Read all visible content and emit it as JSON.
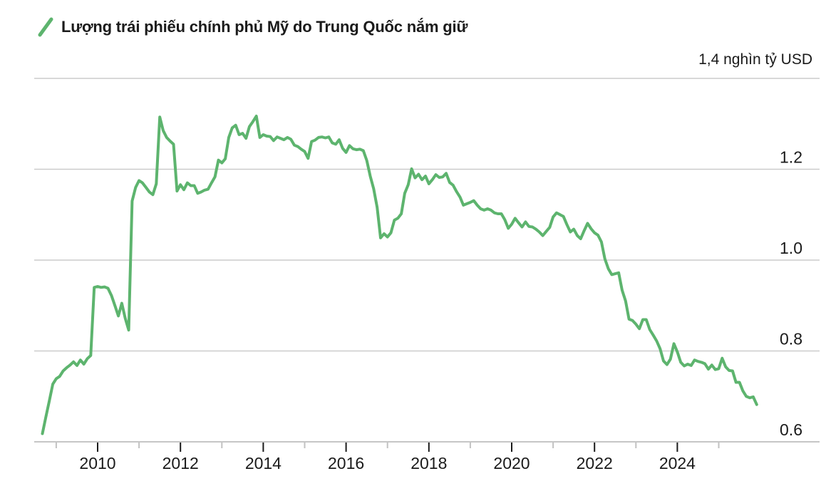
{
  "header": {
    "legend_label": "Lượng trái phiếu chính phủ Mỹ do Trung Quốc nắm giữ"
  },
  "colors": {
    "line": "#5db46e",
    "grid": "#cccccc",
    "axis": "#c6c6c6",
    "tick_major": "#1a1a1a",
    "tick_minor": "#c2c2c2",
    "text": "#1a1a1a"
  },
  "chart_data": {
    "type": "line",
    "title": "Lượng trái phiếu chính phủ Mỹ do Trung Quốc nắm giữ",
    "unit_top_label": "1,4 nghìn tỷ USD",
    "ylabel": "nghìn tỷ USD",
    "xlabel": "",
    "ylim": [
      0.6,
      1.4
    ],
    "grid": true,
    "legend_position": "top-left",
    "y_gridlines": [
      1.4,
      1.2,
      1.0,
      0.8,
      0.6
    ],
    "y_tick_labels": [
      {
        "value": 1.2,
        "label": "1.2"
      },
      {
        "value": 1.0,
        "label": "1.0"
      },
      {
        "value": 0.8,
        "label": "0.8"
      },
      {
        "value": 0.6,
        "label": "0.6"
      }
    ],
    "x_ticks_major": [
      {
        "year": 2010,
        "label": "2010"
      },
      {
        "year": 2012,
        "label": "2012"
      },
      {
        "year": 2014,
        "label": "2014"
      },
      {
        "year": 2016,
        "label": "2016"
      },
      {
        "year": 2018,
        "label": "2018"
      },
      {
        "year": 2020,
        "label": "2020"
      },
      {
        "year": 2022,
        "label": "2022"
      },
      {
        "year": 2024,
        "label": "2024"
      }
    ],
    "x_ticks_minor": [
      2009,
      2011,
      2013,
      2015,
      2017,
      2019,
      2021,
      2023,
      2025
    ],
    "series": [
      {
        "name": "Lượng trái phiếu chính phủ Mỹ do Trung Quốc nắm giữ",
        "unit": "nghìn tỷ USD",
        "start_year": 2008,
        "start_month": 9,
        "interval": "monthly",
        "values": [
          0.618,
          0.655,
          0.69,
          0.727,
          0.739,
          0.744,
          0.756,
          0.763,
          0.769,
          0.776,
          0.768,
          0.78,
          0.771,
          0.783,
          0.79,
          0.94,
          0.942,
          0.94,
          0.941,
          0.938,
          0.922,
          0.9,
          0.877,
          0.905,
          0.872,
          0.846,
          1.13,
          1.16,
          1.175,
          1.17,
          1.16,
          1.15,
          1.144,
          1.168,
          1.315,
          1.285,
          1.27,
          1.262,
          1.255,
          1.152,
          1.166,
          1.155,
          1.17,
          1.164,
          1.164,
          1.147,
          1.15,
          1.154,
          1.156,
          1.17,
          1.183,
          1.22,
          1.214,
          1.223,
          1.27,
          1.291,
          1.297,
          1.276,
          1.279,
          1.268,
          1.294,
          1.305,
          1.317,
          1.27,
          1.276,
          1.273,
          1.272,
          1.263,
          1.271,
          1.268,
          1.265,
          1.27,
          1.266,
          1.253,
          1.25,
          1.244,
          1.239,
          1.224,
          1.261,
          1.264,
          1.27,
          1.271,
          1.269,
          1.271,
          1.258,
          1.255,
          1.265,
          1.246,
          1.237,
          1.252,
          1.245,
          1.243,
          1.244,
          1.241,
          1.219,
          1.185,
          1.157,
          1.116,
          1.049,
          1.058,
          1.051,
          1.06,
          1.088,
          1.092,
          1.102,
          1.147,
          1.166,
          1.201,
          1.181,
          1.189,
          1.177,
          1.185,
          1.168,
          1.177,
          1.188,
          1.182,
          1.183,
          1.191,
          1.171,
          1.165,
          1.151,
          1.139,
          1.121,
          1.124,
          1.127,
          1.131,
          1.121,
          1.113,
          1.11,
          1.113,
          1.11,
          1.104,
          1.102,
          1.102,
          1.089,
          1.07,
          1.079,
          1.092,
          1.082,
          1.073,
          1.084,
          1.074,
          1.073,
          1.068,
          1.062,
          1.054,
          1.063,
          1.072,
          1.095,
          1.104,
          1.1,
          1.096,
          1.078,
          1.062,
          1.068,
          1.054,
          1.047,
          1.065,
          1.081,
          1.069,
          1.06,
          1.055,
          1.04,
          1.003,
          0.981,
          0.968,
          0.97,
          0.972,
          0.934,
          0.91,
          0.87,
          0.867,
          0.859,
          0.849,
          0.869,
          0.869,
          0.847,
          0.835,
          0.822,
          0.805,
          0.778,
          0.77,
          0.782,
          0.816,
          0.798,
          0.775,
          0.767,
          0.771,
          0.768,
          0.78,
          0.777,
          0.775,
          0.772,
          0.76,
          0.769,
          0.759,
          0.761,
          0.784,
          0.765,
          0.757,
          0.756,
          0.731,
          0.731,
          0.712,
          0.7,
          0.697,
          0.699,
          0.682
        ]
      }
    ]
  }
}
